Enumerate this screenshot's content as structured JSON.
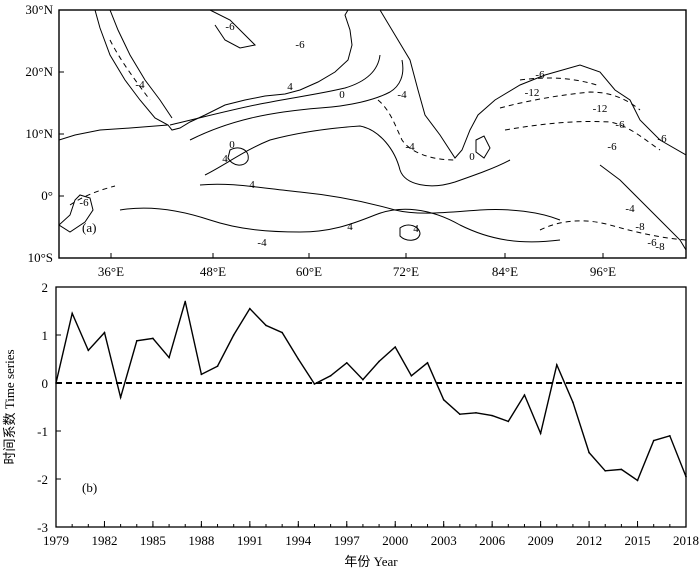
{
  "figure": {
    "panel_a": {
      "label": "(a)",
      "lat_ticks": [
        "30°N",
        "20°N",
        "10°N",
        "0°",
        "10°S"
      ],
      "lon_ticks": [
        "36°E",
        "48°E",
        "60°E",
        "72°E",
        "84°E",
        "96°E"
      ],
      "contour_labels": [
        "-6",
        "-6",
        "4",
        "0",
        "4",
        "0",
        "-4",
        "4",
        "-4",
        "-6",
        "-12",
        "-12",
        "-6",
        "-6",
        "-6",
        "4",
        "-4",
        "4",
        "0",
        "-4",
        "-8",
        "-6",
        "-6",
        "-4",
        "-8"
      ]
    },
    "panel_b": {
      "label": "(b)",
      "ylabel": "时间系数 Time series",
      "xlabel": "年份 Year"
    }
  },
  "chart_data": [
    {
      "type": "map",
      "panel": "(a)",
      "lat_range": [
        -10,
        30
      ],
      "lon_range": [
        30,
        105
      ],
      "contour_values": [
        -12,
        -8,
        -6,
        -4,
        0,
        4
      ]
    },
    {
      "type": "line",
      "panel": "(b)",
      "x": [
        1979,
        1980,
        1981,
        1982,
        1983,
        1984,
        1985,
        1986,
        1987,
        1988,
        1989,
        1990,
        1991,
        1992,
        1993,
        1994,
        1995,
        1996,
        1997,
        1998,
        1999,
        2000,
        2001,
        2002,
        2003,
        2004,
        2005,
        2006,
        2007,
        2008,
        2009,
        2010,
        2011,
        2012,
        2013,
        2014,
        2015,
        2016,
        2017,
        2018
      ],
      "series": [
        {
          "values": [
            0.0,
            1.45,
            0.68,
            1.05,
            -0.3,
            0.88,
            0.93,
            0.53,
            1.7,
            0.18,
            0.35,
            1.0,
            1.55,
            1.2,
            1.05,
            0.5,
            -0.02,
            0.15,
            0.42,
            0.07,
            0.45,
            0.75,
            0.15,
            0.42,
            -0.35,
            -0.65,
            -0.62,
            -0.68,
            -0.8,
            -0.25,
            -1.05,
            0.38,
            -0.4,
            -1.45,
            -1.83,
            -1.8,
            -2.03,
            -1.2,
            -1.1,
            -1.95
          ]
        }
      ],
      "xlim": [
        1979,
        2018
      ],
      "ylim": [
        -3,
        2
      ],
      "xticks": [
        1979,
        1982,
        1985,
        1988,
        1991,
        1994,
        1997,
        2000,
        2003,
        2006,
        2009,
        2012,
        2015,
        2018
      ],
      "yticks": [
        2,
        1,
        0,
        -1,
        -2,
        -3
      ],
      "reference_line": {
        "y": 0,
        "style": "dashed"
      },
      "grid": false
    }
  ]
}
